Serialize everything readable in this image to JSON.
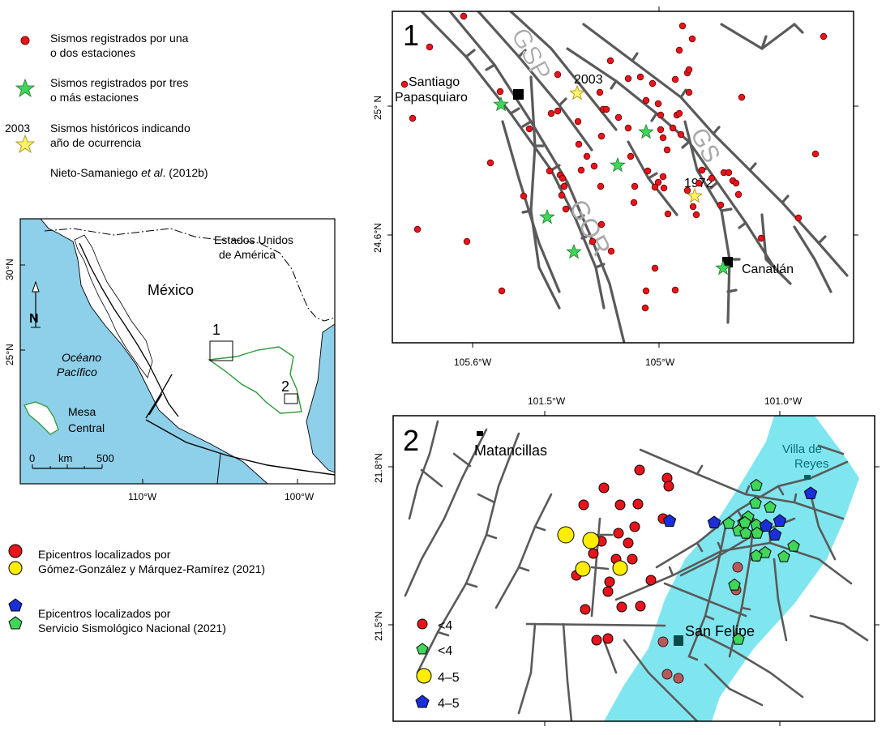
{
  "top_legend": {
    "red_dot": "Sismos registrados por una",
    "red_dot_2": "o dos estaciones",
    "green_star": "Sismos registrados por tres",
    "green_star_2": "o más estaciones",
    "hist_year": "2003",
    "hist": "Sismos históricos indicando",
    "hist_2": "año de ocurrencia",
    "ref_a": "Nieto-Samaniego ",
    "ref_italic": "et al",
    "ref_b": ". (2012b)"
  },
  "inset": {
    "country_usa": "Estados Unidos",
    "country_usa_2": "de América",
    "country_mx": "México",
    "ocean": "Océano",
    "ocean_2": "Pacífico",
    "region": "Mesa",
    "region_2": "Central",
    "north": "N",
    "box1": "1",
    "box2": "2",
    "scale_0": "0",
    "scale_km": "km",
    "scale_500": "500",
    "lat_30": "30°N",
    "lat_25": "25°N",
    "lon_110": "110°W",
    "lon_100": "100°W",
    "colors": {
      "sea": "#8ecfe9",
      "land": "#ffffff",
      "mesa_outline": "#2e9a3a"
    }
  },
  "bottom_legend": {
    "circles": "Epicentros localizados por",
    "circles_2": "Gómez-González y Márquez-Ramírez (2021)",
    "pentagons": "Epicentros localizados por",
    "pentagons_2": "Servicio Sismológico Nacional (2021)"
  },
  "map1": {
    "panel_no": "1",
    "fault_gsp": "GSP",
    "fault_gor": "GOR",
    "fault_gs": "GS",
    "city_santiago": "Santiago",
    "city_santiago_2": "Papasquiaro",
    "city_canatlan": "Canatlán",
    "year_2003": "2003",
    "year_1972": "1972",
    "lat_25": "25° N",
    "lat_246": "24.6°N",
    "lon_1056": "105.6°W",
    "lon_105": "105°W"
  },
  "map2": {
    "panel_no": "2",
    "city_matancillas": "Matancillas",
    "city_villa": "Villa de",
    "city_villa_2": "Reyes",
    "city_sanfelipe": "San Felipe",
    "lat_218": "21.8°N",
    "lat_215": "21.5°N",
    "lon_1015": "101.5°W",
    "lon_1010": "101.0°W",
    "mag_legend": [
      "<4",
      "<4",
      "4–5",
      "4–5"
    ],
    "colors": {
      "valley": "#7fe6ef",
      "red": "#e8141b",
      "yellow": "#ffee00",
      "green": "#3fd65a",
      "blue": "#1a2fd8"
    }
  }
}
